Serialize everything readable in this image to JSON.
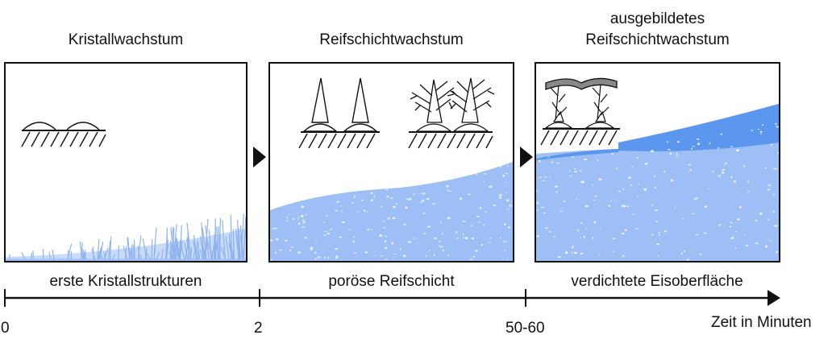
{
  "stages": [
    {
      "title": "Kristallwachstum",
      "label": "erste Kristallstrukturen"
    },
    {
      "title": "Reifschichtwachstum",
      "label": "poröse Reifschicht"
    },
    {
      "title_line1": "ausgebildetes",
      "title_line2": "Reifschichtwachstum",
      "label": "verdichtete Eisoberfläche"
    }
  ],
  "timeline": {
    "ticks": [
      "0",
      "2",
      "50-60"
    ],
    "axis_label": "Zeit in Minuten"
  },
  "colors": {
    "frost_light": "#9dbff5",
    "frost_dense": "#5b96ef",
    "outline": "#111111"
  }
}
